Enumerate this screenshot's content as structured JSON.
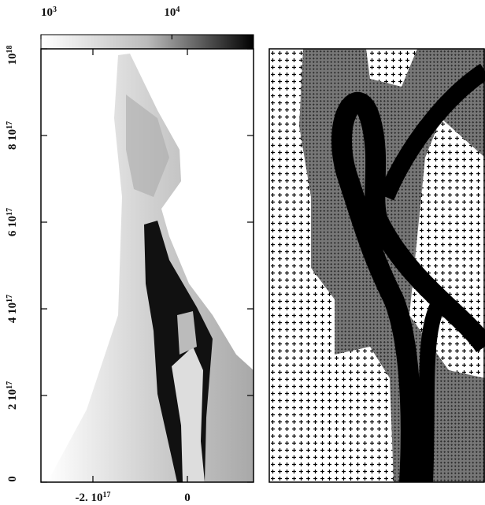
{
  "chart_data": {
    "type": "heatmap",
    "colorbar": {
      "scale": "log",
      "lim": [
        1000,
        42000
      ],
      "ticks": [
        {
          "value": 1000,
          "label": "10",
          "exp": "3"
        },
        {
          "value": 10000,
          "label": "10",
          "exp": "4"
        }
      ]
    },
    "ylim": [
      0,
      1e+18
    ],
    "yticks": [
      {
        "value": 0,
        "label": "0"
      },
      {
        "value": 2e+17,
        "label": "2 10",
        "exp": "17"
      },
      {
        "value": 4e+17,
        "label": "4 10",
        "exp": "17"
      },
      {
        "value": 6e+17,
        "label": "6 10",
        "exp": "17"
      },
      {
        "value": 8e+17,
        "label": "8 10",
        "exp": "17"
      },
      {
        "value": 1e+18,
        "label": "10",
        "exp": "18"
      }
    ],
    "xlim": [
      -3.1e+17,
      1.4e+17
    ],
    "xticks": [
      {
        "value": -2e+17,
        "label": "-2. 10",
        "exp": "17"
      },
      {
        "value": 0,
        "label": "0"
      }
    ]
  }
}
